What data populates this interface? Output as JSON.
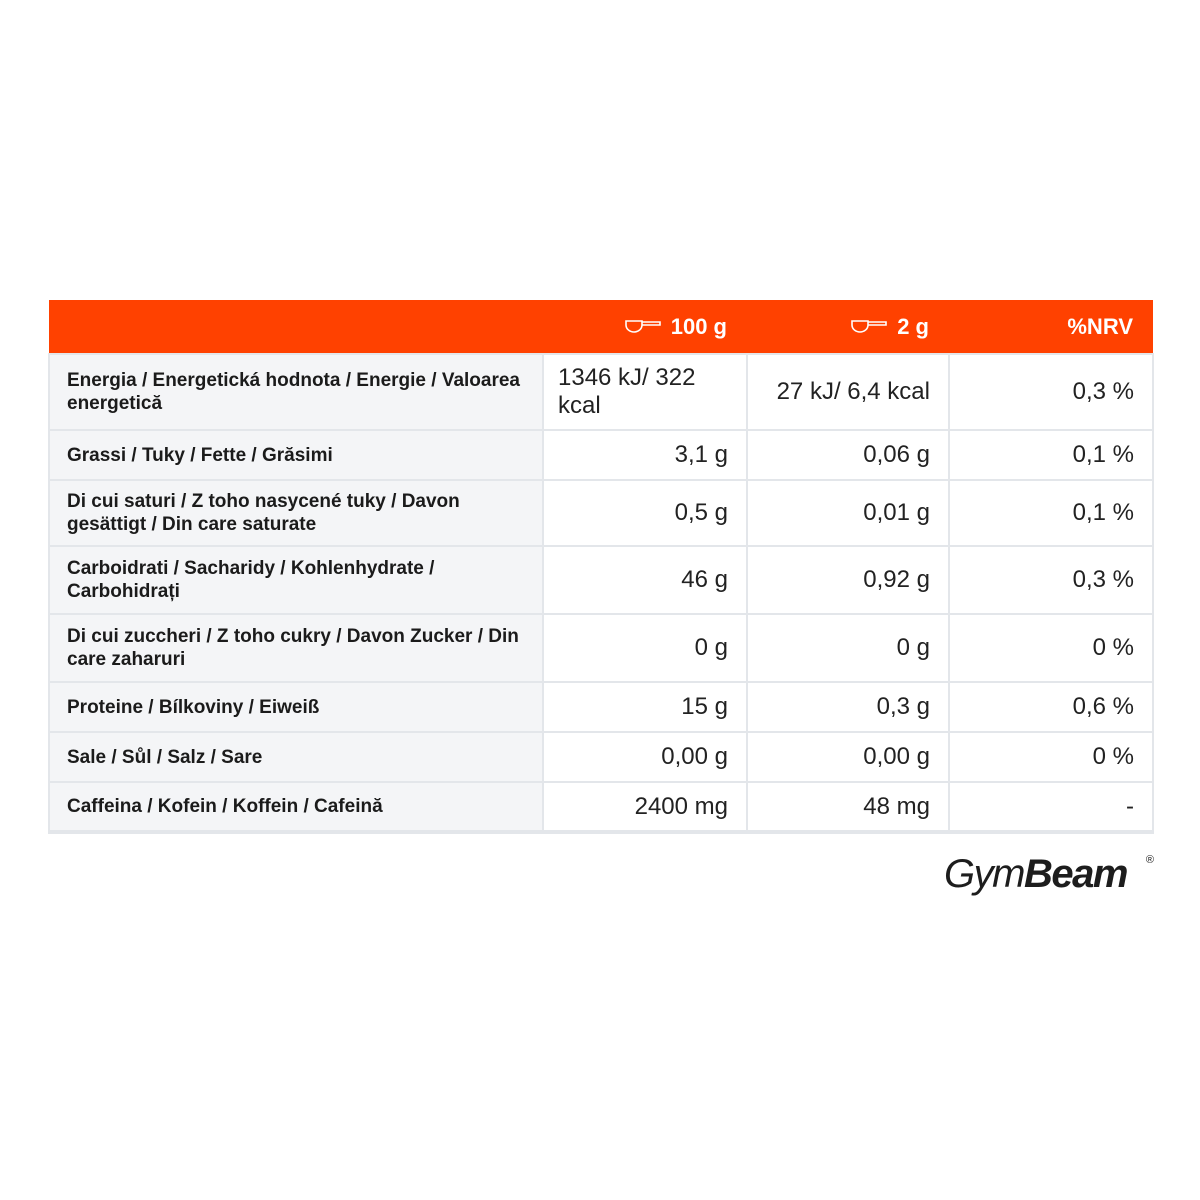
{
  "table": {
    "header": {
      "col1": "",
      "col2": "100 g",
      "col3": "2 g",
      "col4": "%NRV",
      "icon": "scoop-icon",
      "color": "#ff4100"
    },
    "rows": [
      {
        "label": "Energia / Energetická hodnota / Energie / Valoarea energetică",
        "per100": "1346 kJ/ 322 kcal",
        "per2": "27 kJ/ 6,4 kcal",
        "nrv": "0,3 %"
      },
      {
        "label": "Grassi / Tuky / Fette / Grăsimi",
        "per100": "3,1 g",
        "per2": "0,06 g",
        "nrv": "0,1 %"
      },
      {
        "label": "Di cui saturi / Z toho nasycené tuky / Davon gesättigt / Din care saturate",
        "per100": "0,5 g",
        "per2": "0,01 g",
        "nrv": "0,1 %"
      },
      {
        "label": "Carboidrati / Sacharidy / Kohlenhydrate / Carbohidrați",
        "per100": "46 g",
        "per2": "0,92 g",
        "nrv": "0,3 %"
      },
      {
        "label": "Di cui zuccheri / Z toho cukry / Davon Zucker / Din care zaharuri",
        "per100": "0 g",
        "per2": "0 g",
        "nrv": "0 %"
      },
      {
        "label": "Proteine / Bílkoviny / Eiweiß",
        "per100": "15 g",
        "per2": "0,3 g",
        "nrv": "0,6 %"
      },
      {
        "label": "Sale / Sůl / Salz / Sare",
        "per100": "0,00 g",
        "per2": "0,00 g",
        "nrv": "0 %"
      },
      {
        "label": "Caffeina / Kofein / Koffein / Cafeină",
        "per100": "2400 mg",
        "per2": "48 mg",
        "nrv": "-"
      }
    ]
  },
  "logo": {
    "part1": "Gym",
    "part2": "Beam",
    "mark": "®"
  }
}
